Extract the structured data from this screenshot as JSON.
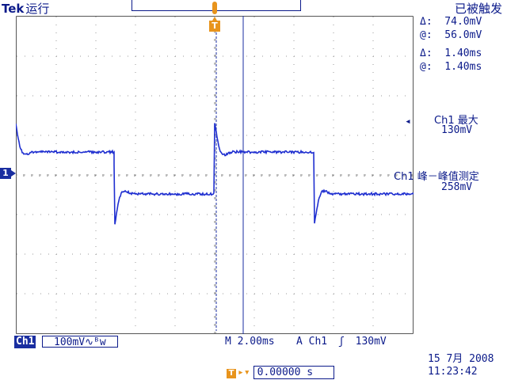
{
  "header": {
    "brand": "Tek",
    "run_state": "运行",
    "trigger_status": "已被触发"
  },
  "trigger_marker": "T",
  "channel_marker": "1",
  "cursor_readouts": {
    "delta_v": "Δ:  74.0mV",
    "at_v": "@:  56.0mV",
    "delta_t": "Δ:  1.40ms",
    "at_t": "@:  1.40ms"
  },
  "measurements": [
    {
      "label": "Ch1 最大",
      "value": "130mV"
    },
    {
      "label": "Ch1 峰－峰值测定",
      "value": "258mV"
    }
  ],
  "bottom_bar": {
    "channel": "Ch1",
    "volts_div": "100mV",
    "bw_symbol": "∿ᴮw",
    "timebase": "M 2.00ms",
    "trigger_source": "A  Ch1",
    "trigger_slope": "ʃ",
    "trigger_level": "130mV"
  },
  "date": "15 7月  2008",
  "time": "11:23:42",
  "trigger_position": "0.00000 s",
  "colors": {
    "trace": "#1f2fd0",
    "text": "#0b1a8a",
    "accent": "#e8941c",
    "grid": "#808080"
  }
}
